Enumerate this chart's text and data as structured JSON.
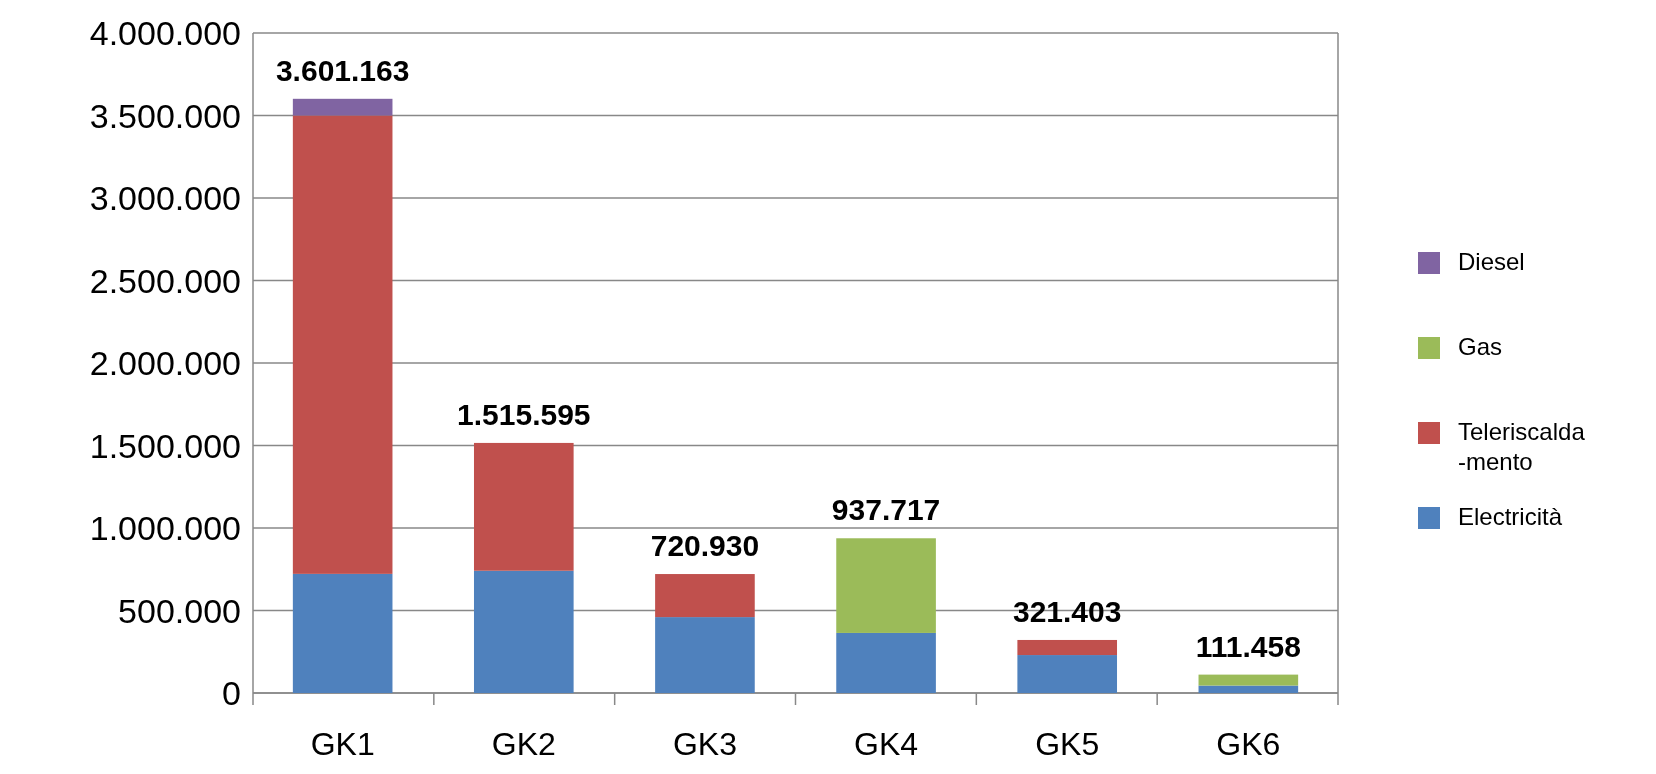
{
  "chart_data": {
    "type": "bar",
    "stacked": true,
    "categories": [
      "GK1",
      "GK2",
      "GK3",
      "GK4",
      "GK5",
      "GK6"
    ],
    "series": [
      {
        "name": "Electricità",
        "color": "#4f81bd",
        "values": [
          722000,
          741000,
          460000,
          364000,
          230000,
          45000
        ]
      },
      {
        "name": "Teleriscalda-mento",
        "color": "#c0504d",
        "values": [
          2778000,
          774595,
          260930,
          null,
          91403,
          null
        ]
      },
      {
        "name": "Gas",
        "color": "#9bbb59",
        "values": [
          null,
          null,
          null,
          573717,
          null,
          66458
        ]
      },
      {
        "name": "Diesel",
        "color": "#8064a2",
        "values": [
          101163,
          null,
          null,
          null,
          null,
          null
        ]
      }
    ],
    "totals": [
      "3.601.163",
      "1.515.595",
      "720.930",
      "937.717",
      "321.403",
      "111.458"
    ],
    "ylim": [
      0,
      4000000
    ],
    "yticks": [
      {
        "value": 0,
        "label": "0"
      },
      {
        "value": 500000,
        "label": "500.000"
      },
      {
        "value": 1000000,
        "label": "1.000.000"
      },
      {
        "value": 1500000,
        "label": "1.500.000"
      },
      {
        "value": 2000000,
        "label": "2.000.000"
      },
      {
        "value": 2500000,
        "label": "2.500.000"
      },
      {
        "value": 3000000,
        "label": "3.000.000"
      },
      {
        "value": 3500000,
        "label": "3.500.000"
      },
      {
        "value": 4000000,
        "label": "4.000.000"
      }
    ],
    "grid": "y",
    "legend": "right"
  }
}
